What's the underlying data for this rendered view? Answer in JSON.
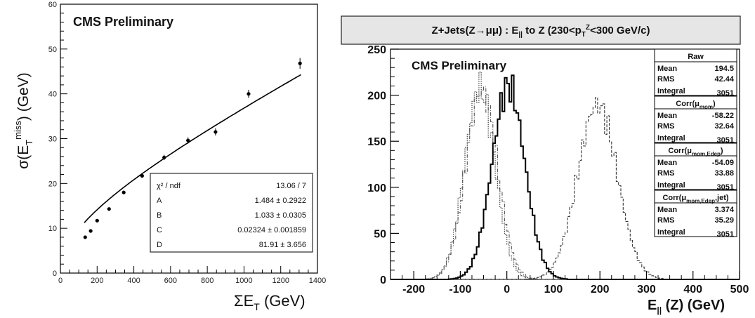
{
  "chart_data": [
    {
      "type": "scatter",
      "annotation": "CMS Preliminary",
      "xlim": [
        0,
        1400
      ],
      "ylim": [
        0,
        60
      ],
      "xticks": [
        "0",
        "200",
        "400",
        "600",
        "800",
        "1000",
        "1200",
        "1400"
      ],
      "yticks": [
        "0",
        "10",
        "20",
        "30",
        "40",
        "50",
        "60"
      ],
      "xlabel": {
        "base": "ΣE",
        "sub": "T",
        "unit": " (GeV)"
      },
      "ylabel": {
        "pre": "σ(E",
        "sub": "T",
        "sup": "miss",
        "post": ") (GeV)"
      },
      "points": [
        {
          "x": 135,
          "y": 8.0,
          "err": 0.3
        },
        {
          "x": 165,
          "y": 9.4,
          "err": 0.3
        },
        {
          "x": 200,
          "y": 11.7,
          "err": 0.3
        },
        {
          "x": 265,
          "y": 14.3,
          "err": 0.3
        },
        {
          "x": 345,
          "y": 18.0,
          "err": 0.3
        },
        {
          "x": 445,
          "y": 21.7,
          "err": 0.3
        },
        {
          "x": 565,
          "y": 25.8,
          "err": 0.6
        },
        {
          "x": 695,
          "y": 29.6,
          "err": 0.7
        },
        {
          "x": 845,
          "y": 31.5,
          "err": 0.8
        },
        {
          "x": 1025,
          "y": 40.0,
          "err": 0.9
        },
        {
          "x": 1305,
          "y": 46.8,
          "err": 1.2
        }
      ],
      "fit": {
        "formula_params": {
          "A": 1.484,
          "B": 1.033,
          "C": 0.02324,
          "D": 81.91
        },
        "rows": [
          {
            "name": "χ² / ndf",
            "value": "13.06 / 7"
          },
          {
            "name": "A",
            "value": "1.484 ± 0.2922"
          },
          {
            "name": "B",
            "value": "1.033 ± 0.0305"
          },
          {
            "name": "C",
            "value": "0.02324 ± 0.001859"
          },
          {
            "name": "D",
            "value": "81.91 ± 3.656"
          }
        ]
      }
    },
    {
      "type": "histogram",
      "title": {
        "pre": "Z+Jets(Z→μμ) : ",
        "met": "E",
        "met_sub": "||",
        "mid": "  to Z (230<p",
        "pt_sub": "T",
        "pt_sup": "Z",
        "post": "<300 GeV/c)"
      },
      "annotation": "CMS Preliminary",
      "xlim": [
        -250,
        500
      ],
      "ylim": [
        0,
        250
      ],
      "xticks": [
        "-200",
        "-100",
        "0",
        "100",
        "200",
        "300",
        "400",
        "500"
      ],
      "yticks": [
        "0",
        "50",
        "100",
        "150",
        "200",
        "250"
      ],
      "xlabel": {
        "met": "E",
        "sub": "||",
        "post": " (Z) (GeV)"
      },
      "series": [
        {
          "name": "Raw",
          "mean": 194.5,
          "rms": 42.44,
          "peak": 190,
          "style": "dashed"
        },
        {
          "name": "Corr(μmom)",
          "mean": -58.22,
          "rms": 32.64,
          "peak": 208,
          "style": "dotted"
        },
        {
          "name": "Corr(μmom,Edep)",
          "mean": -54.09,
          "rms": 33.88,
          "peak": 205,
          "style": "dashdot"
        },
        {
          "name": "Corr(μmom,Edep,jet)",
          "mean": 3.374,
          "rms": 35.29,
          "peak": 210,
          "style": "solid"
        }
      ],
      "stats": [
        {
          "title": "Raw",
          "title_base": "Raw",
          "title_sub": "",
          "title_end": "",
          "rows": [
            {
              "k": "Mean",
              "v": "194.5"
            },
            {
              "k": "RMS",
              "v": "42.44"
            },
            {
              "k": "Integral",
              "v": "3051"
            }
          ]
        },
        {
          "title": "Corr(μmom)",
          "title_base": "Corr(μ",
          "title_sub": "mom",
          "title_end": ")",
          "rows": [
            {
              "k": "Mean",
              "v": "-58.22"
            },
            {
              "k": "RMS",
              "v": "32.64"
            },
            {
              "k": "Integral",
              "v": "3051"
            }
          ]
        },
        {
          "title": "Corr(μmom,Edep)",
          "title_base": "Corr(μ",
          "title_sub": "mom,Edep",
          "title_end": ")",
          "rows": [
            {
              "k": "Mean",
              "v": "-54.09"
            },
            {
              "k": "RMS",
              "v": "33.88"
            },
            {
              "k": "Integral",
              "v": "3051"
            }
          ]
        },
        {
          "title": "Corr(μmom,Edep,jet)",
          "title_base": "Corr(μ",
          "title_sub": "mom,Edep",
          "title_end": ",jet)",
          "rows": [
            {
              "k": "Mean",
              "v": "3.374"
            },
            {
              "k": "RMS",
              "v": "35.29"
            },
            {
              "k": "Integral",
              "v": "3051"
            }
          ]
        }
      ]
    }
  ]
}
